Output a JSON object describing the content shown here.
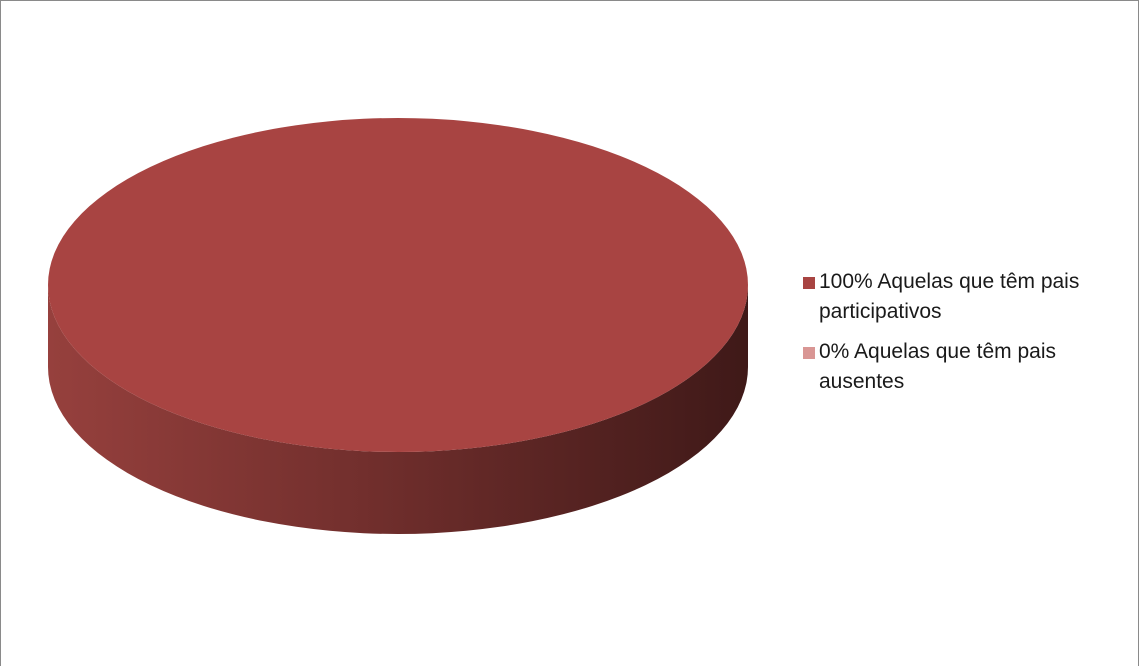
{
  "chart_data": {
    "type": "pie",
    "style": "3d",
    "labels": [
      "100% Aquelas que têm pais participativos",
      "0% Aquelas que têm pais ausentes"
    ],
    "values": [
      100,
      0
    ],
    "colors": [
      "#a84442",
      "#d99694"
    ],
    "legend_position": "right"
  }
}
